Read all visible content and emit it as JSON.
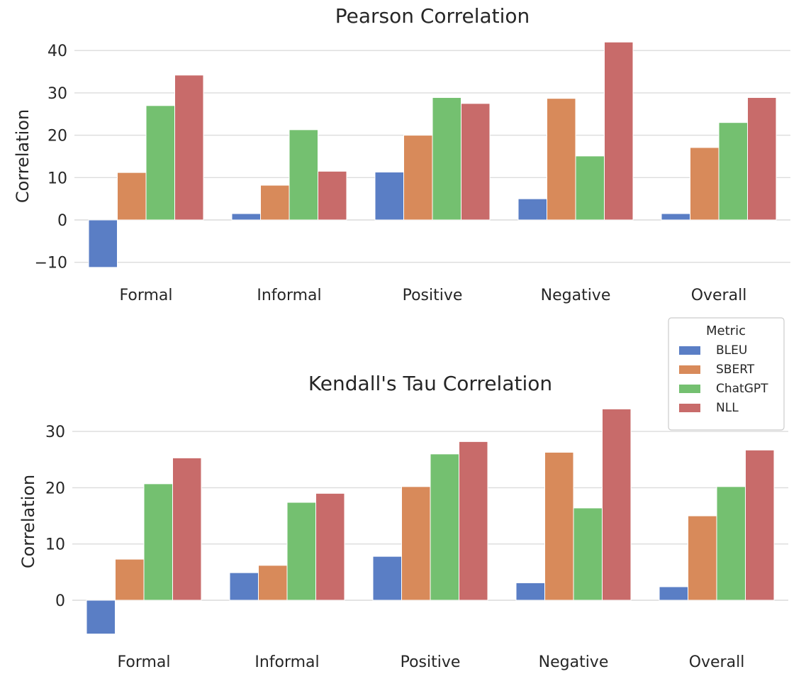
{
  "chart_data": [
    {
      "type": "bar",
      "title": "Pearson Correlation",
      "xlabel": "",
      "ylabel": "Correlation",
      "categories": [
        "Formal",
        "Informal",
        "Positive",
        "Negative",
        "Overall"
      ],
      "ylim": [
        -11.5,
        43
      ],
      "yticks": [
        -10,
        0,
        10,
        20,
        30,
        40
      ],
      "ytick_labels": [
        "−10",
        "0",
        "10",
        "20",
        "30",
        "40"
      ],
      "grid": true,
      "series": [
        {
          "name": "BLEU",
          "values": [
            -11.2,
            1.5,
            11.3,
            5.0,
            1.5
          ]
        },
        {
          "name": "SBERT",
          "values": [
            11.2,
            8.2,
            20.0,
            28.7,
            17.1
          ]
        },
        {
          "name": "ChatGPT",
          "values": [
            27.0,
            21.3,
            28.9,
            15.1,
            23.0
          ]
        },
        {
          "name": "NLL",
          "values": [
            34.2,
            11.5,
            27.5,
            42.0,
            28.9
          ]
        }
      ]
    },
    {
      "type": "bar",
      "title": "Kendall's Tau Correlation",
      "xlabel": "",
      "ylabel": "Correlation",
      "categories": [
        "Formal",
        "Informal",
        "Positive",
        "Negative",
        "Overall"
      ],
      "ylim": [
        -6.5,
        35
      ],
      "yticks": [
        0,
        10,
        20,
        30
      ],
      "ytick_labels": [
        "0",
        "10",
        "20",
        "30"
      ],
      "grid": true,
      "series": [
        {
          "name": "BLEU",
          "values": [
            -6.0,
            4.9,
            7.8,
            3.1,
            2.4
          ]
        },
        {
          "name": "SBERT",
          "values": [
            7.3,
            6.2,
            20.2,
            26.3,
            15.0
          ]
        },
        {
          "name": "ChatGPT",
          "values": [
            20.7,
            17.4,
            26.0,
            16.4,
            20.2
          ]
        },
        {
          "name": "NLL",
          "values": [
            25.3,
            19.0,
            28.2,
            34.0,
            26.7
          ]
        }
      ]
    }
  ],
  "legend": {
    "title": "Metric",
    "placement": "right, between charts",
    "entries": [
      "BLEU",
      "SBERT",
      "ChatGPT",
      "NLL"
    ]
  },
  "colors": {
    "BLEU": "#5a7ec5",
    "SBERT": "#d88a5a",
    "ChatGPT": "#74c070",
    "NLL": "#c86b6a",
    "grid": "#dcdcdc"
  }
}
